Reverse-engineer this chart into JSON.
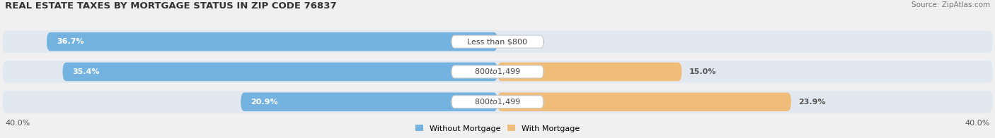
{
  "title": "REAL ESTATE TAXES BY MORTGAGE STATUS IN ZIP CODE 76837",
  "source": "Source: ZipAtlas.com",
  "rows": [
    {
      "label": "Less than $800",
      "without_mortgage": 36.7,
      "with_mortgage": 0.0
    },
    {
      "label": "$800 to $1,499",
      "without_mortgage": 35.4,
      "with_mortgage": 15.0
    },
    {
      "label": "$800 to $1,499",
      "without_mortgage": 20.9,
      "with_mortgage": 23.9
    }
  ],
  "xlim": 40.0,
  "color_without": "#74b3e0",
  "color_with": "#f0bc7a",
  "color_bg_bar": "#e2e8ef",
  "title_fontsize": 9.5,
  "source_fontsize": 7.5,
  "bar_label_fontsize": 8,
  "axis_label_fontsize": 8,
  "legend_label_without": "Without Mortgage",
  "legend_label_with": "With Mortgage",
  "background_color": "#f0f0f0"
}
